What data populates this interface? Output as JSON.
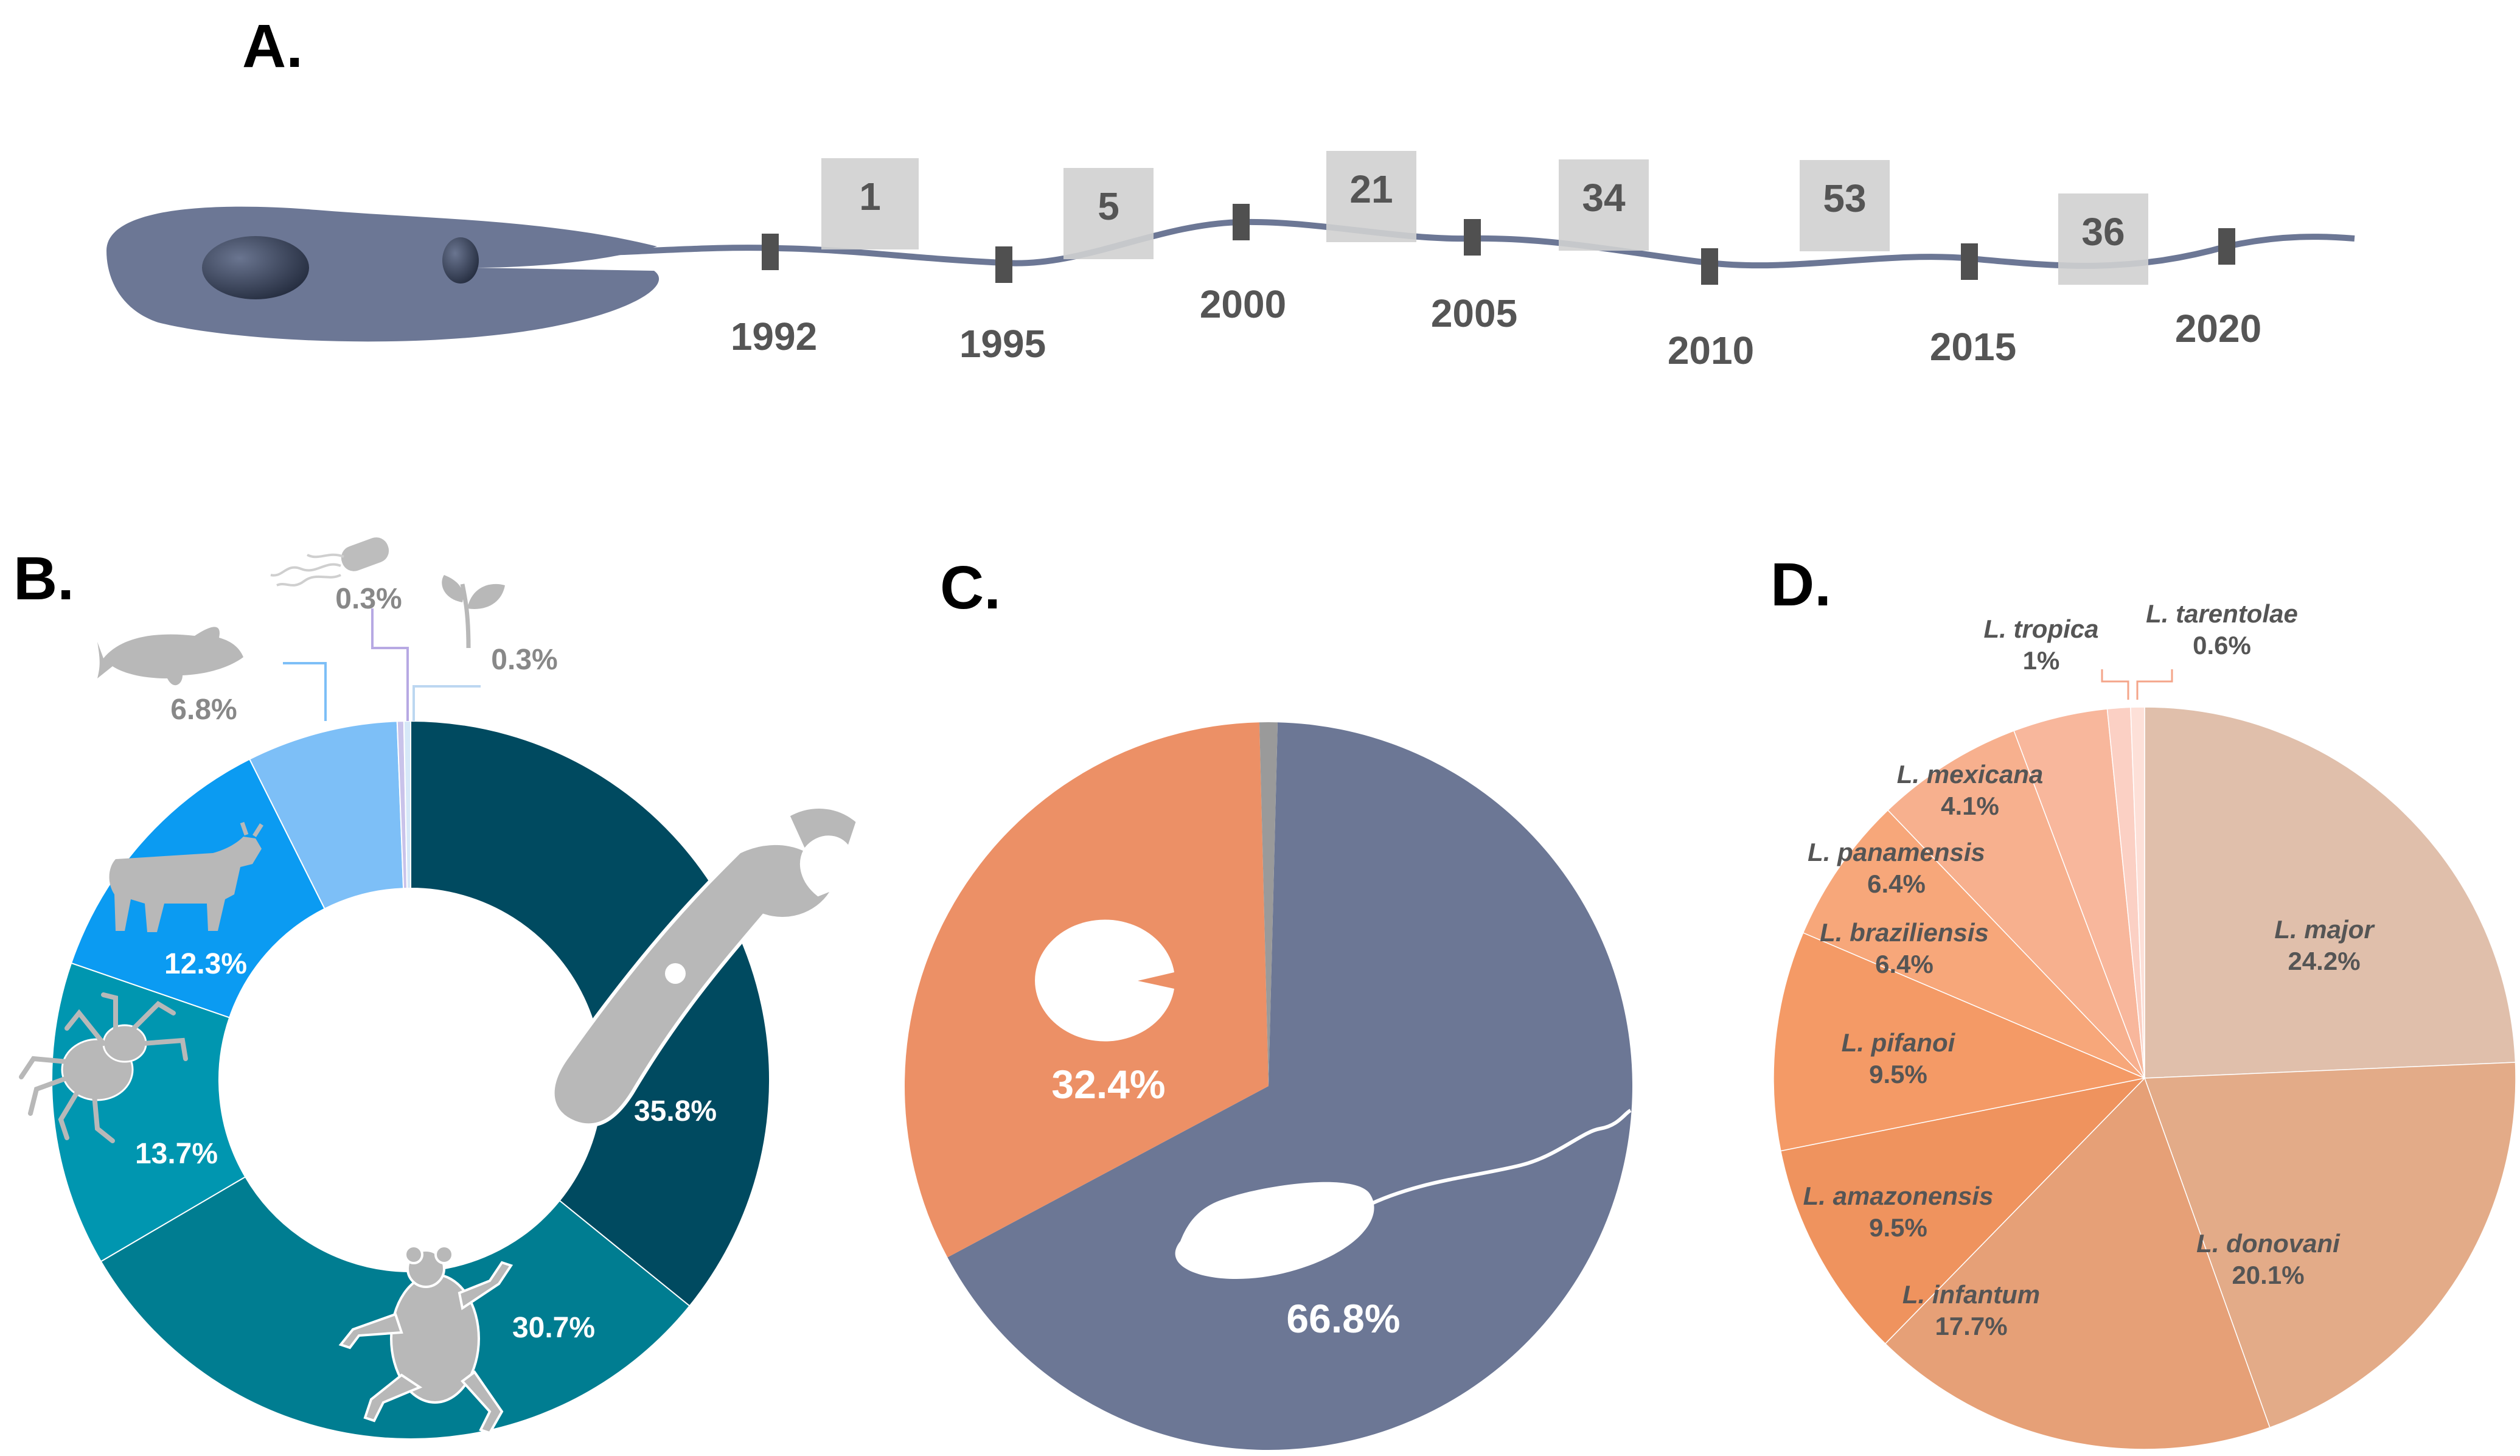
{
  "panels": {
    "a": "A.",
    "b": "B.",
    "c": "C.",
    "d": "D."
  },
  "chart_data": [
    {
      "type": "line",
      "title": "",
      "description_years": [
        "1992",
        "1995",
        "2000",
        "2005",
        "2010",
        "2015",
        "2020"
      ],
      "x": [
        "1992",
        "1995",
        "2000",
        "2005",
        "2010",
        "2015"
      ],
      "counts": [
        1,
        5,
        21,
        34,
        53,
        36
      ],
      "xlabel": "",
      "ylabel": ""
    },
    {
      "type": "pie",
      "subtype": "donut",
      "categories": [
        "tools",
        "amphibian",
        "arachnid",
        "cattle",
        "fish",
        "bacteria",
        "plant"
      ],
      "values": [
        35.8,
        30.7,
        13.7,
        12.3,
        6.8,
        0.3,
        0.3
      ],
      "labels": [
        "35.8%",
        "30.7%",
        "13.7%",
        "12.3%",
        "6.8%",
        "0.3%",
        "0.3%"
      ],
      "colors": [
        "#004a60",
        "#007d91",
        "#0096b0",
        "#0b9bf2",
        "#7dbff7",
        "#c9c3ea",
        "#d6e8f8"
      ]
    },
    {
      "type": "pie",
      "categories": [
        "flagellated promastigote",
        "amastigote",
        "other"
      ],
      "values": [
        66.8,
        32.4,
        0.8
      ],
      "labels": [
        "66.8%",
        "32.4%",
        ""
      ],
      "colors": [
        "#6c7795",
        "#ec9066",
        "#9a9a9a"
      ]
    },
    {
      "type": "pie",
      "categories": [
        "L. major",
        "L. donovani",
        "L. infantum",
        "L. amazonensis",
        "L. pifanoi",
        "L. braziliensis",
        "L. panamensis",
        "L. mexicana",
        "L. tropica",
        "L. tarentolae"
      ],
      "values": [
        24.2,
        20.1,
        17.7,
        9.5,
        9.5,
        6.4,
        6.4,
        4.1,
        1,
        0.6
      ],
      "labels": [
        "24.2%",
        "20.1%",
        "17.7%",
        "9.5%",
        "9.5%",
        "6.4%",
        "6.4%",
        "4.1%",
        "1%",
        "0.6%"
      ],
      "colors": [
        "#e0bfab",
        "#e3ab88",
        "#e6a077",
        "#ef935e",
        "#f49a66",
        "#f7a77a",
        "#f7b08e",
        "#f8b79c",
        "#fbd0c4",
        "#fde0d8"
      ]
    }
  ]
}
